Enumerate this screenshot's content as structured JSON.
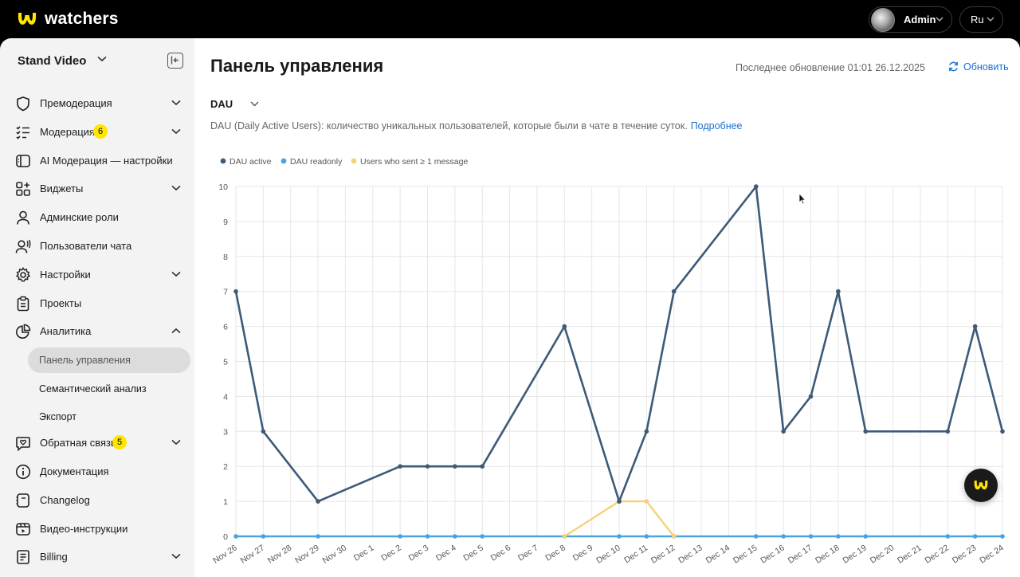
{
  "app": {
    "logo_text": "watchers",
    "brand_color": "#ffe500",
    "user_name": "Admin",
    "language": "Ru"
  },
  "sidebar": {
    "project_name": "Stand Video",
    "items": [
      {
        "label": "Премодерация",
        "icon": "shield-icon",
        "chevron": "down"
      },
      {
        "label": "Модерация",
        "icon": "list-check-icon",
        "chevron": "down",
        "badge": "6"
      },
      {
        "label": "AI Модерация — настройки",
        "icon": "ai-panel-icon"
      },
      {
        "label": "Виджеты",
        "icon": "widgets-icon",
        "chevron": "down"
      },
      {
        "label": "Админские роли",
        "icon": "user-icon"
      },
      {
        "label": "Пользователи чата",
        "icon": "user-voice-icon"
      },
      {
        "label": "Настройки",
        "icon": "gear-icon",
        "chevron": "down"
      },
      {
        "label": "Проекты",
        "icon": "clipboard-icon"
      },
      {
        "label": "Аналитика",
        "icon": "pie-chart-icon",
        "chevron": "up"
      },
      {
        "label": "Обратная связь",
        "icon": "heart-chat-icon",
        "chevron": "down",
        "badge": "5"
      },
      {
        "label": "Документация",
        "icon": "info-icon"
      },
      {
        "label": "Changelog",
        "icon": "changelog-icon"
      },
      {
        "label": "Видео-инструкции",
        "icon": "video-icon"
      },
      {
        "label": "Billing",
        "icon": "billing-icon",
        "chevron": "down"
      }
    ],
    "analytics_sub": [
      {
        "label": "Панель управления",
        "active": true
      },
      {
        "label": "Семантический анализ",
        "active": false
      },
      {
        "label": "Экспорт",
        "active": false
      }
    ]
  },
  "main": {
    "title": "Панель управления",
    "updated_text": "Последнее обновление 01:01 26.12.2025",
    "refresh_label": "Обновить",
    "metric_selected": "DAU",
    "description": "DAU (Daily Active Users): количество уникальных пользователей, которые были в чате в течение суток.",
    "more_link": "Подробнее"
  },
  "chart_data": {
    "type": "line",
    "categories": [
      "Nov 26",
      "Nov 27",
      "Nov 28",
      "Nov 29",
      "Nov 30",
      "Dec 1",
      "Dec 2",
      "Dec 3",
      "Dec 4",
      "Dec 5",
      "Dec 6",
      "Dec 7",
      "Dec 8",
      "Dec 9",
      "Dec 10",
      "Dec 11",
      "Dec 12",
      "Dec 13",
      "Dec 14",
      "Dec 15",
      "Dec 16",
      "Dec 17",
      "Dec 18",
      "Dec 19",
      "Dec 20",
      "Dec 21",
      "Dec 22",
      "Dec 23",
      "Dec 24"
    ],
    "ylim": [
      0,
      10
    ],
    "yticks": [
      "0",
      "1",
      "2",
      "3",
      "4",
      "5",
      "6",
      "7",
      "8",
      "9",
      "10"
    ],
    "grid": true,
    "legend_position": "top-left",
    "series": [
      {
        "name": "DAU active",
        "color": "#3d5a78",
        "values": [
          7,
          3,
          null,
          1,
          null,
          null,
          2,
          2,
          2,
          2,
          null,
          null,
          6,
          null,
          1,
          3,
          7,
          null,
          null,
          10,
          3,
          4,
          7,
          3,
          null,
          null,
          3,
          6,
          3
        ]
      },
      {
        "name": "DAU readonly",
        "color": "#4aa3df",
        "values": [
          0,
          0,
          null,
          0,
          null,
          null,
          0,
          0,
          0,
          0,
          null,
          null,
          0,
          null,
          0,
          0,
          0,
          null,
          null,
          0,
          0,
          0,
          0,
          0,
          null,
          null,
          0,
          0,
          0
        ]
      },
      {
        "name": "Users who sent ≥ 1 message",
        "color": "#f5d27a",
        "values": [
          null,
          null,
          null,
          null,
          null,
          null,
          null,
          null,
          null,
          null,
          null,
          null,
          0,
          null,
          1,
          1,
          0,
          null,
          null,
          null,
          null,
          null,
          null,
          null,
          null,
          null,
          null,
          null,
          null
        ]
      }
    ]
  }
}
